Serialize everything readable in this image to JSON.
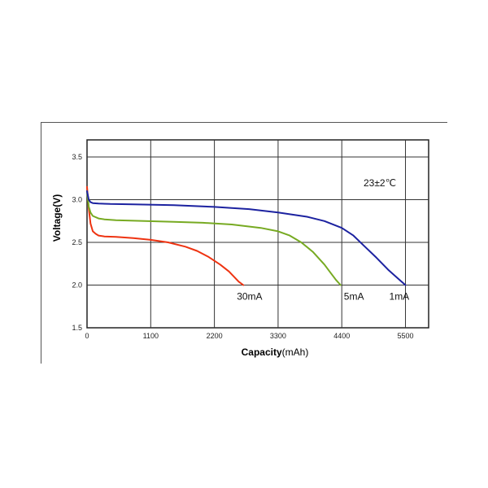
{
  "chart_data": {
    "type": "line",
    "annotation": "23±2℃",
    "xlabel_bold": "Capacity",
    "xlabel_unit": "(mAh)",
    "ylabel": "Voltage(V)",
    "xlim": [
      0,
      5900
    ],
    "ylim": [
      1.5,
      3.7
    ],
    "x_ticks": [
      0,
      1100,
      2200,
      3300,
      4400,
      5500
    ],
    "x_tick_labels": [
      "0",
      "1100",
      "2200",
      "3300",
      "4400",
      "5500"
    ],
    "y_ticks": [
      1.5,
      2.0,
      2.5,
      3.0,
      3.5
    ],
    "y_tick_labels": [
      "1.5",
      "2.0",
      "2.5",
      "3.0",
      "3.5"
    ],
    "grid": true,
    "series": [
      {
        "name": "30mA",
        "color": "#ee3311",
        "x": [
          0,
          30,
          60,
          100,
          150,
          200,
          300,
          500,
          800,
          1100,
          1400,
          1700,
          1900,
          2100,
          2300,
          2450,
          2550,
          2620,
          2700
        ],
        "y": [
          3.15,
          2.9,
          2.72,
          2.63,
          2.6,
          2.58,
          2.57,
          2.565,
          2.55,
          2.53,
          2.5,
          2.45,
          2.4,
          2.33,
          2.24,
          2.16,
          2.09,
          2.04,
          2.0
        ]
      },
      {
        "name": "5mA",
        "color": "#77aa22",
        "x": [
          0,
          30,
          60,
          100,
          200,
          300,
          500,
          1000,
          1500,
          2000,
          2500,
          3000,
          3300,
          3500,
          3700,
          3900,
          4100,
          4200,
          4300,
          4380
        ],
        "y": [
          3.1,
          2.92,
          2.85,
          2.81,
          2.78,
          2.77,
          2.76,
          2.75,
          2.74,
          2.73,
          2.71,
          2.67,
          2.63,
          2.58,
          2.5,
          2.39,
          2.24,
          2.15,
          2.06,
          2.0
        ]
      },
      {
        "name": "1mA",
        "color": "#1c22a0",
        "x": [
          0,
          30,
          60,
          100,
          200,
          400,
          800,
          1500,
          2200,
          2800,
          3300,
          3800,
          4100,
          4400,
          4600,
          4800,
          5000,
          5200,
          5400,
          5500
        ],
        "y": [
          3.1,
          3.0,
          2.97,
          2.96,
          2.955,
          2.95,
          2.945,
          2.935,
          2.915,
          2.89,
          2.85,
          2.8,
          2.75,
          2.67,
          2.58,
          2.45,
          2.32,
          2.18,
          2.06,
          2.0
        ]
      }
    ]
  }
}
